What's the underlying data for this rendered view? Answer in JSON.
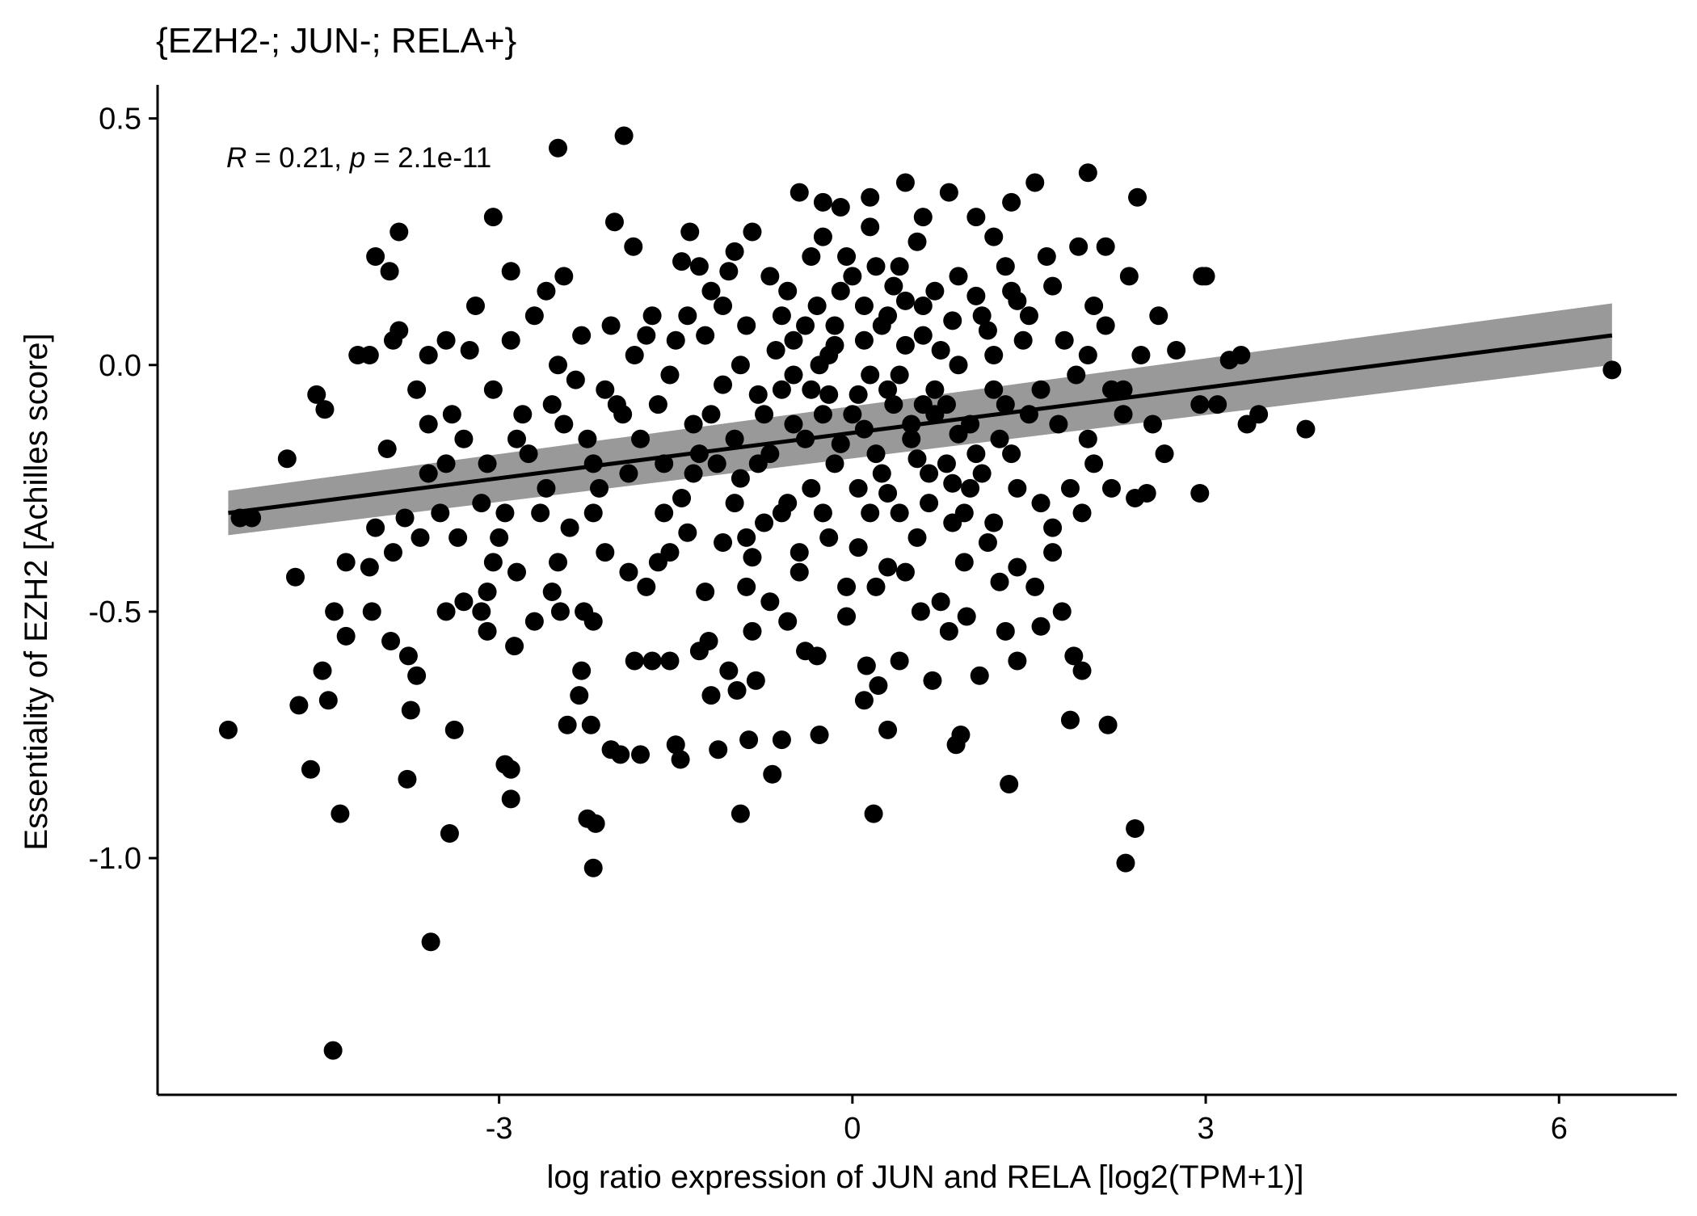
{
  "chart_data": {
    "type": "scatter",
    "title": "{EZH2-; JUN-; RELA+}",
    "xlabel": "log ratio expression of JUN and RELA [log2(TPM+1)]",
    "ylabel": "Essentiality of EZH2 [Achilles score]",
    "xlim": [
      -5.9,
      7.0
    ],
    "ylim": [
      -1.48,
      0.56
    ],
    "xticks": [
      -3,
      0,
      3,
      6
    ],
    "xtick_labels": [
      "-3",
      "0",
      "3",
      "6"
    ],
    "yticks": [
      0.5,
      0.0,
      -0.5,
      -1.0
    ],
    "ytick_labels": [
      "0.5",
      "0.0",
      "-0.5",
      "-1.0"
    ],
    "grid": false,
    "legend": "none",
    "annotation": {
      "r_symbol": "R",
      "r_text": " = 0.21, ",
      "p_symbol": "p",
      "p_text": " = 2.1e-11"
    },
    "regression": {
      "x": [
        -5.3,
        6.45
      ],
      "y": [
        -0.3,
        0.06
      ],
      "ci_start": [
        -0.255,
        -0.345
      ],
      "ci_end": [
        0.125,
        0.0
      ]
    },
    "colors": {
      "points": "#000000",
      "line": "#000000",
      "band": "#999999"
    },
    "points": [
      [
        -2.5,
        0.44
      ],
      [
        -1.94,
        0.465
      ],
      [
        -4.41,
        -1.39
      ],
      [
        -3.58,
        -1.17
      ],
      [
        -2.2,
        -1.02
      ],
      [
        2.32,
        -1.01
      ],
      [
        -5.3,
        -0.74
      ],
      [
        -4.7,
        -0.69
      ],
      [
        -4.45,
        -0.68
      ],
      [
        -4.5,
        -0.62
      ],
      [
        -4.3,
        -0.55
      ],
      [
        -4.4,
        -0.5
      ],
      [
        -4.08,
        -0.5
      ],
      [
        -3.92,
        -0.56
      ],
      [
        -3.77,
        -0.59
      ],
      [
        -3.7,
        -0.63
      ],
      [
        -4.73,
        -0.43
      ],
      [
        -4.1,
        -0.41
      ],
      [
        -4.3,
        -0.4
      ],
      [
        -3.9,
        -0.38
      ],
      [
        -3.8,
        -0.31
      ],
      [
        -3.67,
        -0.35
      ],
      [
        -4.05,
        -0.33
      ],
      [
        -4.8,
        -0.19
      ],
      [
        -3.95,
        -0.17
      ],
      [
        -4.55,
        -0.06
      ],
      [
        -4.48,
        -0.09
      ],
      [
        -4.2,
        0.02
      ],
      [
        -4.1,
        0.02
      ],
      [
        -3.9,
        0.05
      ],
      [
        -3.6,
        0.02
      ],
      [
        -3.85,
        0.07
      ],
      [
        -4.05,
        0.22
      ],
      [
        -3.93,
        0.19
      ],
      [
        -3.85,
        0.27
      ],
      [
        -3.05,
        0.3
      ],
      [
        -2.9,
        0.19
      ],
      [
        -2.45,
        0.18
      ],
      [
        -2.02,
        0.29
      ],
      [
        -1.86,
        0.24
      ],
      [
        -1.38,
        0.27
      ],
      [
        -1.0,
        0.23
      ],
      [
        -0.45,
        0.35
      ],
      [
        -0.25,
        0.33
      ],
      [
        0.15,
        0.34
      ],
      [
        0.45,
        0.37
      ],
      [
        0.82,
        0.35
      ],
      [
        1.05,
        0.3
      ],
      [
        1.35,
        0.33
      ],
      [
        1.55,
        0.37
      ],
      [
        2.0,
        0.39
      ],
      [
        2.42,
        0.34
      ],
      [
        1.92,
        0.24
      ],
      [
        2.15,
        0.24
      ],
      [
        2.35,
        0.18
      ],
      [
        2.6,
        0.1
      ],
      [
        2.75,
        0.03
      ],
      [
        2.97,
        0.18
      ],
      [
        3.0,
        0.18
      ],
      [
        3.2,
        0.01
      ],
      [
        3.3,
        0.02
      ],
      [
        2.95,
        -0.08
      ],
      [
        3.1,
        -0.08
      ],
      [
        3.35,
        -0.12
      ],
      [
        3.45,
        -0.1
      ],
      [
        3.85,
        -0.13
      ],
      [
        6.45,
        -0.01
      ],
      [
        2.65,
        -0.18
      ],
      [
        2.5,
        -0.26
      ],
      [
        2.4,
        -0.27
      ],
      [
        2.95,
        -0.26
      ],
      [
        -5.1,
        -0.31
      ],
      [
        -5.2,
        -0.31
      ],
      [
        -4.6,
        -0.82
      ],
      [
        -4.35,
        -0.91
      ],
      [
        -3.78,
        -0.84
      ],
      [
        -3.42,
        -0.95
      ],
      [
        -2.9,
        -0.82
      ],
      [
        -2.95,
        -0.81
      ],
      [
        -2.9,
        -0.88
      ],
      [
        -2.25,
        -0.92
      ],
      [
        -2.18,
        -0.93
      ],
      [
        -2.42,
        -0.73
      ],
      [
        -2.22,
        -0.73
      ],
      [
        -1.97,
        -0.79
      ],
      [
        -1.8,
        -0.79
      ],
      [
        -1.5,
        -0.77
      ],
      [
        -1.46,
        -0.8
      ],
      [
        -1.14,
        -0.78
      ],
      [
        -0.95,
        -0.91
      ],
      [
        -0.68,
        -0.83
      ],
      [
        -0.6,
        -0.76
      ],
      [
        -0.88,
        -0.76
      ],
      [
        -0.28,
        -0.75
      ],
      [
        0.18,
        -0.91
      ],
      [
        0.3,
        -0.74
      ],
      [
        0.88,
        -0.77
      ],
      [
        0.92,
        -0.75
      ],
      [
        1.33,
        -0.85
      ],
      [
        1.85,
        -0.72
      ],
      [
        2.17,
        -0.73
      ],
      [
        2.4,
        -0.94
      ],
      [
        -3.38,
        -0.74
      ],
      [
        -3.75,
        -0.7
      ],
      [
        -3.45,
        -0.5
      ],
      [
        -3.15,
        -0.5
      ],
      [
        -3.1,
        -0.54
      ],
      [
        -2.87,
        -0.57
      ],
      [
        -2.7,
        -0.52
      ],
      [
        -2.55,
        -0.46
      ],
      [
        -2.48,
        -0.5
      ],
      [
        -2.28,
        -0.5
      ],
      [
        -2.2,
        -0.52
      ],
      [
        -2.3,
        -0.62
      ],
      [
        -2.32,
        -0.67
      ],
      [
        -1.85,
        -0.6
      ],
      [
        -1.7,
        -0.6
      ],
      [
        -1.55,
        -0.6
      ],
      [
        -1.3,
        -0.58
      ],
      [
        -1.22,
        -0.56
      ],
      [
        -1.05,
        -0.62
      ],
      [
        -0.98,
        -0.66
      ],
      [
        -0.85,
        -0.54
      ],
      [
        -0.82,
        -0.64
      ],
      [
        -0.55,
        -0.52
      ],
      [
        -0.4,
        -0.58
      ],
      [
        -0.3,
        -0.59
      ],
      [
        -0.05,
        -0.51
      ],
      [
        0.12,
        -0.61
      ],
      [
        0.22,
        -0.65
      ],
      [
        0.4,
        -0.6
      ],
      [
        0.58,
        -0.5
      ],
      [
        0.68,
        -0.64
      ],
      [
        0.82,
        -0.54
      ],
      [
        0.97,
        -0.51
      ],
      [
        1.08,
        -0.63
      ],
      [
        1.3,
        -0.54
      ],
      [
        1.4,
        -0.6
      ],
      [
        1.6,
        -0.53
      ],
      [
        1.78,
        -0.5
      ],
      [
        1.88,
        -0.59
      ],
      [
        1.95,
        -0.62
      ],
      [
        0.1,
        -0.68
      ],
      [
        -1.2,
        -0.67
      ],
      [
        -2.05,
        -0.78
      ],
      [
        -0.28,
        0.0
      ],
      [
        0.0,
        -0.1
      ],
      [
        0.3,
        -0.05
      ],
      [
        -0.5,
        -0.12
      ],
      [
        0.5,
        -0.15
      ],
      [
        -0.8,
        -0.2
      ],
      [
        0.8,
        -0.08
      ],
      [
        1.2,
        0.02
      ],
      [
        -1.2,
        -0.1
      ],
      [
        -0.1,
        0.15
      ],
      [
        0.2,
        0.2
      ],
      [
        0.6,
        0.12
      ],
      [
        -0.4,
        0.08
      ],
      [
        1.0,
        -0.25
      ],
      [
        -1.0,
        -0.28
      ],
      [
        0.4,
        -0.3
      ],
      [
        -0.2,
        -0.35
      ],
      [
        1.5,
        -0.1
      ],
      [
        -1.5,
        0.05
      ],
      [
        1.8,
        0.05
      ],
      [
        -1.8,
        -0.15
      ],
      [
        0.9,
        0.18
      ],
      [
        -0.7,
        0.18
      ],
      [
        0.1,
        0.05
      ],
      [
        -0.15,
        -0.2
      ],
      [
        0.65,
        -0.22
      ],
      [
        -0.95,
        0.0
      ],
      [
        1.35,
        -0.18
      ],
      [
        -1.35,
        -0.22
      ],
      [
        0.25,
        0.08
      ],
      [
        -0.6,
        -0.05
      ],
      [
        0.75,
        0.03
      ],
      [
        -0.35,
        0.22
      ],
      [
        0.05,
        -0.25
      ],
      [
        1.1,
        0.1
      ],
      [
        -1.1,
        0.12
      ],
      [
        0.45,
        -0.42
      ],
      [
        -0.45,
        -0.38
      ],
      [
        1.6,
        -0.28
      ],
      [
        -1.6,
        -0.3
      ],
      [
        2.0,
        -0.15
      ],
      [
        -2.0,
        -0.08
      ],
      [
        0.15,
        0.28
      ],
      [
        -0.25,
        0.26
      ],
      [
        0.55,
        0.25
      ],
      [
        1.3,
        0.2
      ],
      [
        -1.3,
        0.2
      ],
      [
        0.95,
        -0.4
      ],
      [
        -0.9,
        -0.45
      ],
      [
        1.45,
        0.05
      ],
      [
        -1.7,
        0.1
      ],
      [
        2.2,
        -0.05
      ],
      [
        -2.2,
        -0.2
      ],
      [
        -2.5,
        0.0
      ],
      [
        -2.8,
        -0.1
      ],
      [
        -3.1,
        -0.2
      ],
      [
        -3.4,
        -0.1
      ],
      [
        -2.6,
        -0.25
      ],
      [
        -2.3,
        0.06
      ],
      [
        -2.9,
        0.05
      ],
      [
        -3.2,
        0.12
      ],
      [
        -2.7,
        0.1
      ],
      [
        -3.5,
        -0.3
      ],
      [
        -3.0,
        -0.35
      ],
      [
        -2.4,
        -0.33
      ],
      [
        -2.1,
        -0.38
      ],
      [
        -1.9,
        -0.42
      ],
      [
        -1.65,
        -0.4
      ],
      [
        -1.4,
        -0.34
      ],
      [
        -1.1,
        -0.36
      ],
      [
        -0.75,
        -0.32
      ],
      [
        -0.55,
        -0.28
      ],
      [
        -0.25,
        -0.3
      ],
      [
        0.05,
        -0.37
      ],
      [
        0.3,
        -0.41
      ],
      [
        0.55,
        -0.35
      ],
      [
        0.85,
        -0.32
      ],
      [
        1.15,
        -0.36
      ],
      [
        1.4,
        -0.41
      ],
      [
        1.7,
        -0.33
      ],
      [
        1.95,
        -0.3
      ],
      [
        2.2,
        -0.25
      ],
      [
        -0.05,
        0.22
      ],
      [
        0.35,
        0.16
      ],
      [
        0.7,
        0.15
      ],
      [
        1.05,
        0.14
      ],
      [
        1.4,
        0.13
      ],
      [
        1.7,
        0.16
      ],
      [
        2.05,
        0.12
      ],
      [
        -0.15,
        0.08
      ],
      [
        -0.6,
        0.1
      ],
      [
        -0.9,
        0.08
      ],
      [
        -1.25,
        0.06
      ],
      [
        -1.55,
        -0.02
      ],
      [
        -1.85,
        0.02
      ],
      [
        -2.1,
        -0.05
      ],
      [
        0.4,
        -0.02
      ],
      [
        0.7,
        -0.05
      ],
      [
        1.0,
        -0.12
      ],
      [
        1.3,
        -0.08
      ],
      [
        1.6,
        -0.05
      ],
      [
        1.9,
        -0.02
      ],
      [
        2.3,
        -0.1
      ],
      [
        -0.4,
        -0.15
      ],
      [
        -0.7,
        -0.18
      ],
      [
        -1.0,
        -0.15
      ],
      [
        -1.3,
        -0.18
      ],
      [
        -1.6,
        -0.2
      ],
      [
        -1.9,
        -0.22
      ],
      [
        -2.15,
        -0.25
      ],
      [
        0.2,
        -0.18
      ],
      [
        0.5,
        -0.12
      ],
      [
        0.8,
        -0.2
      ],
      [
        1.1,
        -0.22
      ],
      [
        1.4,
        -0.25
      ],
      [
        -0.2,
        -0.06
      ],
      [
        -0.5,
        -0.02
      ],
      [
        -0.8,
        -0.06
      ],
      [
        -1.1,
        -0.04
      ],
      [
        0.1,
        -0.13
      ],
      [
        0.3,
        0.1
      ],
      [
        0.6,
        0.06
      ],
      [
        0.9,
        0.0
      ],
      [
        1.2,
        -0.05
      ],
      [
        -0.3,
        0.12
      ],
      [
        -0.65,
        0.03
      ],
      [
        -1.4,
        0.1
      ],
      [
        -1.75,
        0.06
      ],
      [
        -2.45,
        -0.12
      ],
      [
        -2.75,
        -0.18
      ],
      [
        -3.05,
        -0.05
      ],
      [
        -3.3,
        -0.15
      ],
      [
        -3.6,
        -0.22
      ],
      [
        -3.25,
        0.03
      ],
      [
        -2.6,
        0.15
      ],
      [
        -0.05,
        -0.45
      ],
      [
        0.2,
        -0.45
      ],
      [
        0.75,
        -0.48
      ],
      [
        1.25,
        -0.44
      ],
      [
        -0.7,
        -0.48
      ],
      [
        -1.25,
        -0.46
      ],
      [
        -1.75,
        -0.45
      ],
      [
        -2.85,
        -0.42
      ],
      [
        -3.1,
        -0.46
      ],
      [
        -3.3,
        -0.48
      ],
      [
        1.55,
        -0.45
      ],
      [
        0.6,
        0.3
      ],
      [
        -0.1,
        0.32
      ],
      [
        1.65,
        0.22
      ],
      [
        1.2,
        0.26
      ],
      [
        -0.85,
        0.27
      ],
      [
        -1.2,
        0.15
      ],
      [
        -2.05,
        0.08
      ],
      [
        -2.35,
        -0.03
      ],
      [
        -3.45,
        0.05
      ],
      [
        -3.7,
        -0.05
      ],
      [
        -3.45,
        -0.2
      ],
      [
        -3.15,
        -0.28
      ],
      [
        -2.95,
        -0.3
      ],
      [
        -3.6,
        -0.12
      ],
      [
        1.85,
        -0.25
      ],
      [
        2.05,
        -0.2
      ],
      [
        2.3,
        -0.05
      ],
      [
        2.55,
        -0.12
      ],
      [
        2.15,
        0.08
      ],
      [
        2.45,
        0.02
      ],
      [
        1.75,
        -0.12
      ],
      [
        0.45,
        0.04
      ],
      [
        0.65,
        -0.28
      ],
      [
        -0.35,
        -0.25
      ],
      [
        -0.95,
        -0.23
      ],
      [
        -1.45,
        -0.27
      ],
      [
        -2.5,
        -0.4
      ],
      [
        -2.65,
        -0.3
      ],
      [
        -2.2,
        -0.3
      ],
      [
        -1.55,
        -0.38
      ],
      [
        -0.85,
        -0.39
      ],
      [
        -0.45,
        -0.42
      ],
      [
        0.15,
        -0.3
      ],
      [
        0.95,
        -0.3
      ],
      [
        1.2,
        -0.32
      ],
      [
        1.7,
        -0.38
      ],
      [
        -0.15,
        0.04
      ],
      [
        0.85,
        0.09
      ],
      [
        1.15,
        0.07
      ],
      [
        -0.55,
        0.15
      ],
      [
        -1.05,
        0.19
      ],
      [
        -1.45,
        0.21
      ],
      [
        0.35,
        -0.08
      ],
      [
        0.1,
        0.12
      ],
      [
        -0.25,
        -0.1
      ],
      [
        0.55,
        -0.19
      ],
      [
        0.9,
        -0.14
      ],
      [
        -0.1,
        -0.16
      ],
      [
        1.35,
        0.15
      ],
      [
        1.5,
        0.1
      ],
      [
        -1.65,
        -0.08
      ],
      [
        -1.95,
        -0.1
      ],
      [
        -2.25,
        -0.15
      ],
      [
        -2.55,
        -0.08
      ],
      [
        -2.85,
        -0.15
      ],
      [
        -3.35,
        -0.35
      ],
      [
        -3.05,
        -0.4
      ],
      [
        2.0,
        0.02
      ],
      [
        1.25,
        -0.15
      ],
      [
        0.4,
        0.2
      ],
      [
        0.0,
        0.18
      ],
      [
        -0.5,
        0.05
      ],
      [
        0.25,
        -0.22
      ],
      [
        0.7,
        -0.1
      ],
      [
        -0.2,
        0.02
      ],
      [
        0.45,
        0.13
      ],
      [
        -0.75,
        -0.1
      ],
      [
        -1.15,
        -0.2
      ],
      [
        -1.35,
        -0.12
      ],
      [
        -0.35,
        -0.05
      ],
      [
        0.15,
        -0.02
      ],
      [
        0.6,
        -0.08
      ],
      [
        1.05,
        -0.18
      ],
      [
        0.85,
        -0.24
      ],
      [
        -0.6,
        -0.3
      ],
      [
        -0.9,
        -0.35
      ],
      [
        0.3,
        -0.26
      ],
      [
        0.05,
        -0.06
      ]
    ]
  }
}
